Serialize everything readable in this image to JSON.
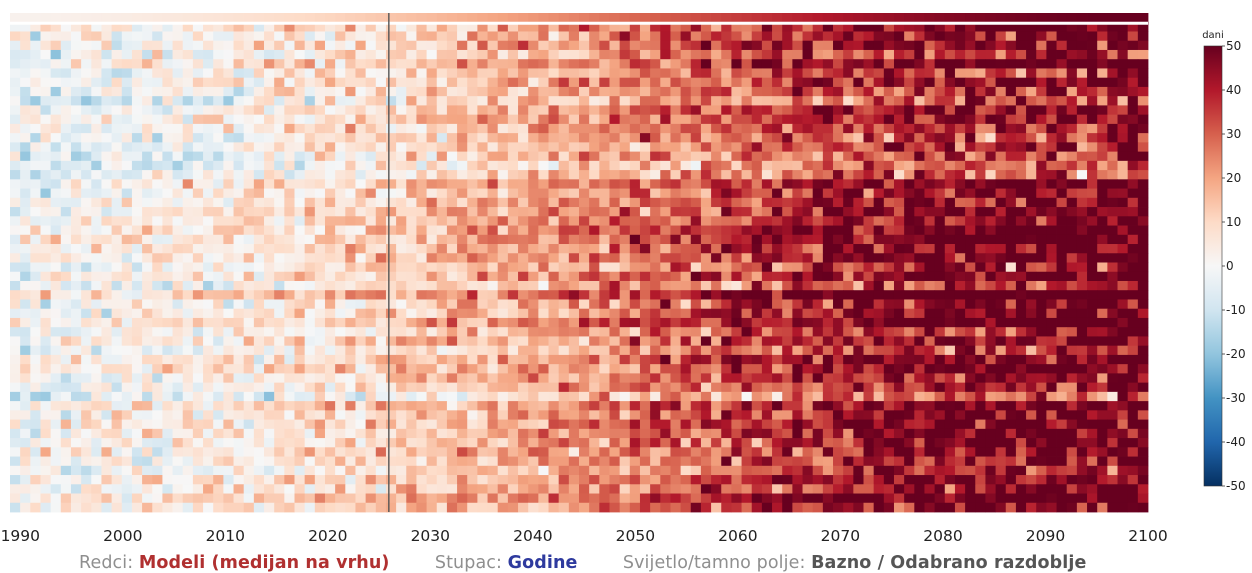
{
  "chart_data": {
    "type": "heatmap",
    "x_tick_labels": [
      "1990",
      "2000",
      "2010",
      "2020",
      "2030",
      "2040",
      "2050",
      "2060",
      "2070",
      "2080",
      "2090",
      "2100"
    ],
    "x_range": [
      1989,
      2100
    ],
    "n_rows": 54,
    "colorbar": {
      "label": "dani",
      "range": [
        -50,
        50
      ],
      "ticks": [
        "50",
        "40",
        "30",
        "20",
        "10",
        "0",
        "-10",
        "-20",
        "-30",
        "-40",
        "-50"
      ],
      "colormap": "RdBu_r"
    },
    "reference_year_line": 2026,
    "median_row_on_top": true,
    "row_mean_trend": {
      "years": [
        1990,
        2000,
        2010,
        2020,
        2030,
        2040,
        2050,
        2060,
        2070,
        2080,
        2090,
        2100
      ],
      "values": [
        -2,
        0,
        3,
        7,
        12,
        18,
        25,
        31,
        37,
        42,
        45,
        47
      ]
    }
  },
  "footer": {
    "rows_label": "Redci:",
    "rows_value": "Modeli (medijan na vrhu)",
    "cols_label": "Stupac:",
    "cols_value": "Godine",
    "light_dark_label": "Svijetlo/tamno polje:",
    "light_dark_value": "Bazno / Odabrano razdoblje"
  },
  "colors": {
    "rows_value": "#b03030",
    "cols_value": "#2e3a9e",
    "light_dark_value": "#555555",
    "text_muted": "#8f8f8f"
  }
}
